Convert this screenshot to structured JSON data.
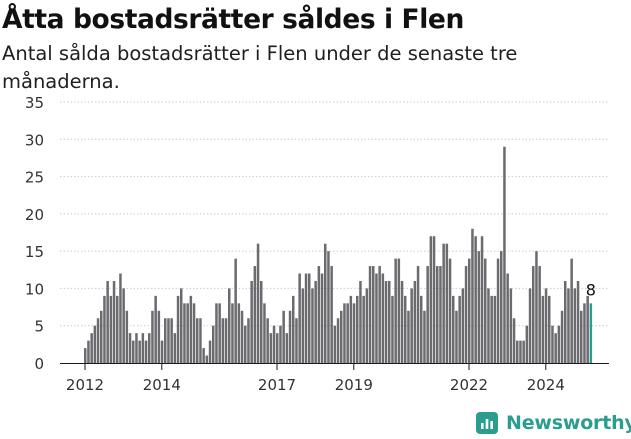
{
  "title": "Åtta bostadsrätter såldes i Flen",
  "subtitle": "Antal sålda bostadsrätter i Flen under de senaste tre månaderna.",
  "logo_text": "Newsworthy",
  "colors": {
    "bar": "#6b6a6e",
    "highlight": "#2a9d8f",
    "grid": "#cccccc",
    "axis": "#1a1a1a",
    "text": "#333333"
  },
  "chart_data": {
    "type": "bar",
    "title": "Åtta bostadsrätter såldes i Flen",
    "subtitle": "Antal sålda bostadsrätter i Flen under de senaste tre månaderna.",
    "xlabel": "",
    "ylabel": "",
    "ylim": [
      0,
      35
    ],
    "y_ticks": [
      0,
      5,
      10,
      15,
      20,
      25,
      30,
      35
    ],
    "x_ticks": [
      "2012",
      "2014",
      "2017",
      "2019",
      "2022",
      "2024"
    ],
    "grid": true,
    "start": "2012-01",
    "values": [
      2,
      3,
      4,
      5,
      6,
      7,
      9,
      11,
      9,
      11,
      9,
      12,
      10,
      7,
      4,
      3,
      4,
      3,
      4,
      3,
      4,
      7,
      9,
      7,
      3,
      6,
      6,
      6,
      4,
      9,
      10,
      8,
      8,
      9,
      8,
      6,
      6,
      2,
      1,
      3,
      5,
      8,
      8,
      6,
      6,
      10,
      8,
      14,
      8,
      7,
      5,
      6,
      11,
      13,
      16,
      11,
      8,
      6,
      4,
      5,
      4,
      5,
      7,
      4,
      7,
      9,
      6,
      12,
      10,
      12,
      12,
      10,
      11,
      13,
      12,
      16,
      15,
      13,
      5,
      6,
      7,
      8,
      8,
      9,
      8,
      9,
      11,
      9,
      10,
      13,
      13,
      12,
      13,
      12,
      11,
      11,
      9,
      14,
      14,
      11,
      9,
      7,
      10,
      11,
      13,
      9,
      7,
      13,
      17,
      17,
      13,
      13,
      16,
      16,
      14,
      9,
      7,
      9,
      10,
      13,
      14,
      18,
      17,
      15,
      17,
      14,
      10,
      9,
      9,
      14,
      15,
      29,
      12,
      10,
      6,
      3,
      3,
      3,
      5,
      10,
      13,
      15,
      13,
      9,
      10,
      9,
      5,
      4,
      5,
      7,
      11,
      10,
      14,
      10,
      11,
      7,
      8,
      9,
      8
    ],
    "highlight_index_from_end": 1,
    "annotation": {
      "text": "8"
    }
  }
}
